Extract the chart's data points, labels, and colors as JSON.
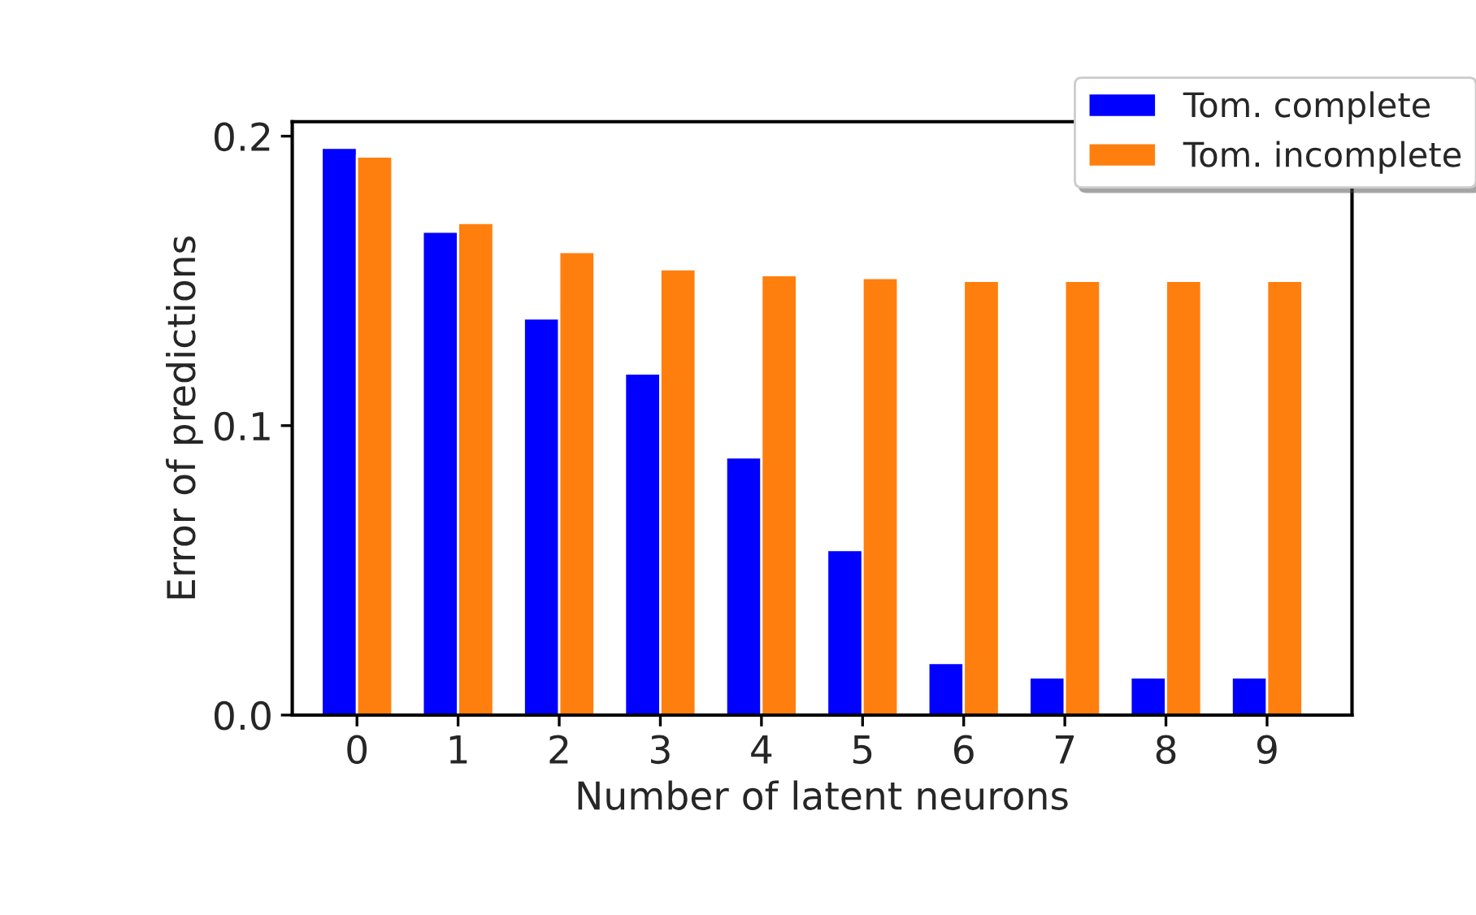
{
  "chart_data": {
    "type": "bar",
    "xlabel": "Number of latent neurons",
    "ylabel": "Error of predictions",
    "categories": [
      "0",
      "1",
      "2",
      "3",
      "4",
      "5",
      "6",
      "7",
      "8",
      "9"
    ],
    "series": [
      {
        "name": "Tom. complete",
        "color": "#0000ff",
        "values": [
          0.196,
          0.167,
          0.137,
          0.118,
          0.089,
          0.057,
          0.018,
          0.013,
          0.013,
          0.013
        ]
      },
      {
        "name": "Tom. incomplete",
        "color": "#ff7f0e",
        "values": [
          0.193,
          0.17,
          0.16,
          0.154,
          0.152,
          0.151,
          0.15,
          0.15,
          0.15,
          0.15
        ]
      }
    ],
    "ylim": [
      0,
      0.205
    ],
    "yticks": [
      {
        "value": 0,
        "label": "0.0"
      },
      {
        "value": 0.1,
        "label": "0.1"
      },
      {
        "value": 0.2,
        "label": "0.2"
      }
    ],
    "legend": "top right",
    "grid": false
  }
}
